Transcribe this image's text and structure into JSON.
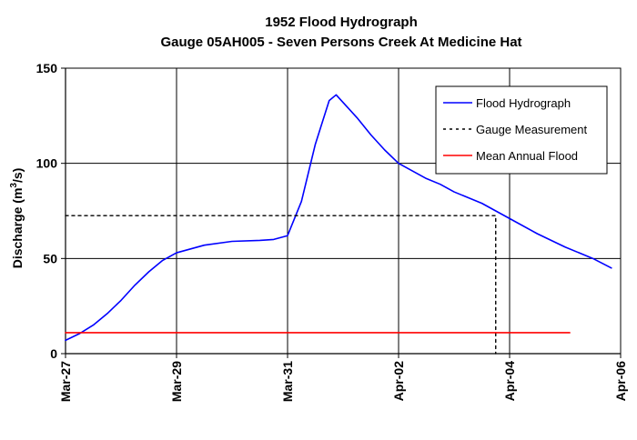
{
  "chart_data": {
    "type": "line",
    "title": "1952 Flood Hydrograph",
    "subtitle": "Gauge 05AH005 - Seven Persons Creek At Medicine Hat",
    "xlabel": "",
    "ylabel_main": "Discharge (m",
    "ylabel_sup": "3",
    "ylabel_tail": "/s)",
    "xlim": [
      "1952-03-27",
      "1952-04-06"
    ],
    "ylim": [
      0,
      150
    ],
    "x_ticks": [
      {
        "date": "1952-03-27",
        "label": "Mar-27"
      },
      {
        "date": "1952-03-29",
        "label": "Mar-29"
      },
      {
        "date": "1952-03-31",
        "label": "Mar-31"
      },
      {
        "date": "1952-04-02",
        "label": "Apr-02"
      },
      {
        "date": "1952-04-04",
        "label": "Apr-04"
      },
      {
        "date": "1952-04-06",
        "label": "Apr-06"
      }
    ],
    "y_ticks": [
      0,
      50,
      100,
      150
    ],
    "grid": true,
    "legend_position": "top-right",
    "series": [
      {
        "name": "Flood Hydrograph",
        "color": "#0000ff",
        "style": "solid",
        "points": [
          [
            "1952-03-27 00:00",
            7
          ],
          [
            "1952-03-27 06:00",
            10.5
          ],
          [
            "1952-03-27 12:00",
            15
          ],
          [
            "1952-03-27 18:00",
            21
          ],
          [
            "1952-03-28 00:00",
            28
          ],
          [
            "1952-03-28 06:00",
            36
          ],
          [
            "1952-03-28 12:00",
            43
          ],
          [
            "1952-03-28 18:00",
            49
          ],
          [
            "1952-03-29 00:00",
            53
          ],
          [
            "1952-03-29 12:00",
            57
          ],
          [
            "1952-03-30 00:00",
            59
          ],
          [
            "1952-03-30 12:00",
            59.5
          ],
          [
            "1952-03-30 18:00",
            60
          ],
          [
            "1952-03-31 00:00",
            62
          ],
          [
            "1952-03-31 06:00",
            80
          ],
          [
            "1952-03-31 12:00",
            110
          ],
          [
            "1952-03-31 18:00",
            133
          ],
          [
            "1952-03-31 21:00",
            136
          ],
          [
            "1952-04-01 00:00",
            132
          ],
          [
            "1952-04-01 06:00",
            124
          ],
          [
            "1952-04-01 12:00",
            115
          ],
          [
            "1952-04-01 18:00",
            107
          ],
          [
            "1952-04-02 00:00",
            100
          ],
          [
            "1952-04-02 06:00",
            96
          ],
          [
            "1952-04-02 12:00",
            92
          ],
          [
            "1952-04-02 18:00",
            89
          ],
          [
            "1952-04-03 00:00",
            85
          ],
          [
            "1952-04-03 12:00",
            79
          ],
          [
            "1952-04-04 00:00",
            71
          ],
          [
            "1952-04-04 12:00",
            63
          ],
          [
            "1952-04-05 00:00",
            56
          ],
          [
            "1952-04-05 12:00",
            50
          ],
          [
            "1952-04-05 20:00",
            45
          ]
        ]
      },
      {
        "name": "Gauge Measurement",
        "color": "#000000",
        "style": "dotted",
        "points": [
          [
            "1952-03-27 00:00",
            72.5
          ],
          [
            "1952-04-03 18:00",
            72.5
          ],
          [
            "1952-04-03 18:00",
            0
          ]
        ]
      },
      {
        "name": "Mean Annual Flood",
        "color": "#ff0000",
        "style": "solid",
        "points": [
          [
            "1952-03-27 00:00",
            11
          ],
          [
            "1952-04-05 02:00",
            11
          ]
        ]
      }
    ]
  }
}
